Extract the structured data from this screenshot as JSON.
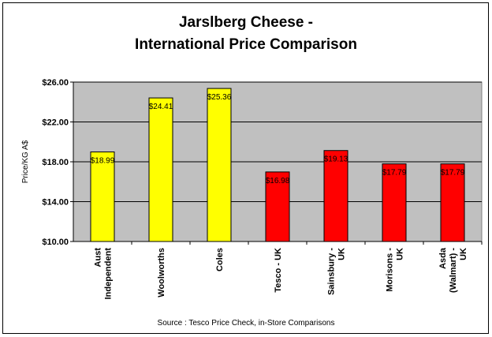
{
  "chart_data": {
    "type": "bar",
    "title": [
      "Jarslberg Cheese -",
      "International Price Comparison"
    ],
    "ylabel": "Price/KG A$",
    "xlabel": "",
    "ylim": [
      10,
      26
    ],
    "yticks": [
      "$10.00",
      "$14.00",
      "$18.00",
      "$22.00",
      "$26.00"
    ],
    "ytick_values": [
      10,
      14,
      18,
      22,
      26
    ],
    "grid": true,
    "categories": [
      [
        "Aust",
        "Independent"
      ],
      [
        "Woolworths"
      ],
      [
        "Coles"
      ],
      [
        "Tesco - UK"
      ],
      [
        "Sainsbury -",
        "UK"
      ],
      [
        "Morisons -",
        "UK"
      ],
      [
        "Asda",
        "(Walmart) -",
        "UK"
      ]
    ],
    "values": [
      18.99,
      24.41,
      25.36,
      16.98,
      19.13,
      17.79,
      17.79
    ],
    "data_labels": [
      "$18.99",
      "$24.41",
      "$25.36",
      "$16.98",
      "$19.13",
      "$17.79",
      "$17.79"
    ],
    "bar_colors": [
      "#ffff00",
      "#ffff00",
      "#ffff00",
      "#ff0000",
      "#ff0000",
      "#ff0000",
      "#ff0000"
    ],
    "plot_background": "#c0c0c0",
    "source_note": "Source : Tesco Price Check, in-Store Comparisons"
  }
}
